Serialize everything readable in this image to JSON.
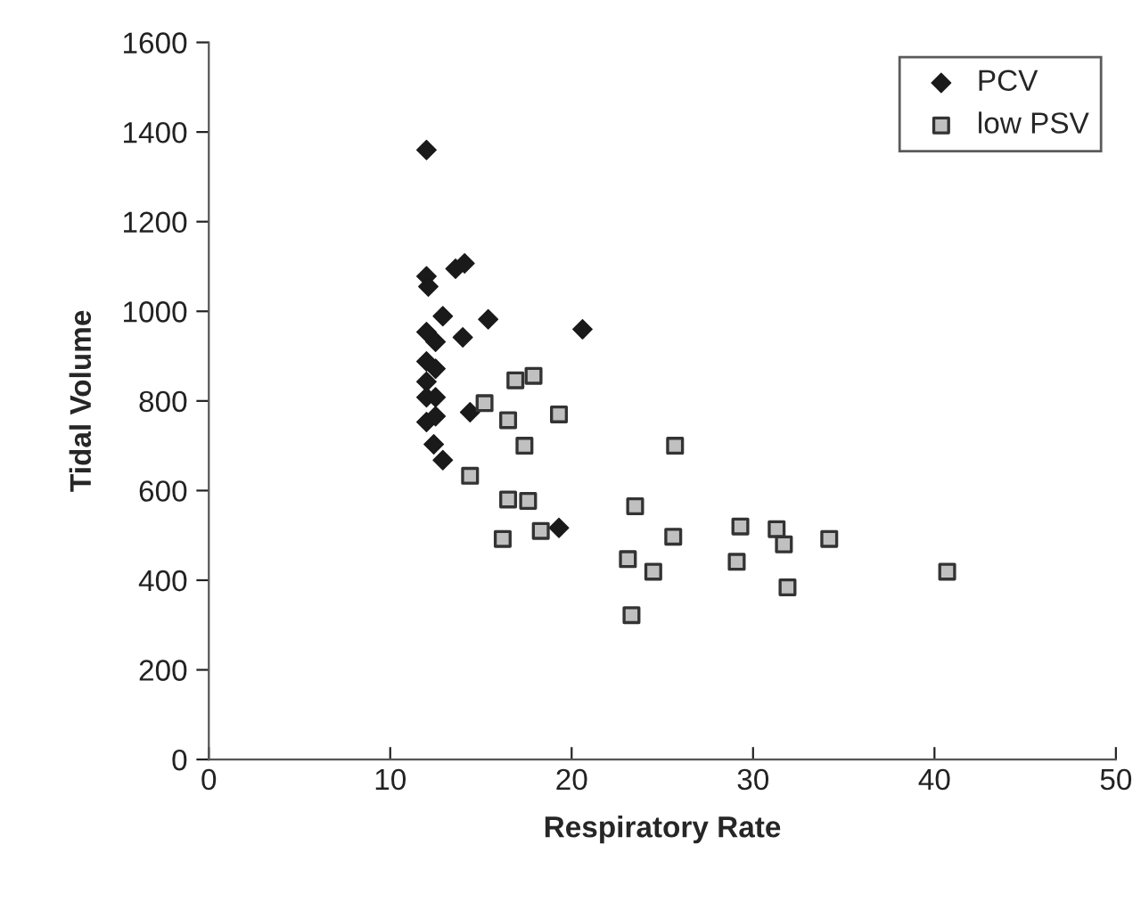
{
  "chart_data": {
    "type": "scatter",
    "xlabel": "Respiratory Rate",
    "ylabel": "Tidal Volume",
    "xlim": [
      0,
      50
    ],
    "xticks": [
      0,
      10,
      20,
      30,
      40,
      50
    ],
    "ylim": [
      0,
      1600
    ],
    "yticks": [
      0,
      200,
      400,
      600,
      800,
      1000,
      1200,
      1400,
      1600
    ],
    "grid": false,
    "legend": "top right",
    "series": [
      {
        "name": "PCV",
        "color": "#1a1a1a",
        "marker": "diamond",
        "x": [
          12.0,
          12.0,
          12.1,
          13.6,
          14.1,
          12.9,
          15.4,
          20.6,
          12.0,
          12.5,
          14.0,
          12.0,
          12.5,
          12.0,
          12.0,
          12.5,
          14.4,
          12.0,
          12.5,
          12.4,
          12.9,
          14.6,
          19.3
        ],
        "values": [
          1360,
          1078,
          1055,
          1095,
          1107,
          989,
          982,
          960,
          954,
          932,
          942,
          888,
          872,
          843,
          808,
          808,
          775,
          753,
          766,
          703,
          668,
          null,
          517
        ]
      },
      {
        "name": "low PSV",
        "color": "#c0c0c0",
        "marker": "square",
        "x": [
          16.9,
          17.9,
          15.2,
          16.5,
          19.3,
          17.4,
          14.4,
          16.5,
          17.6,
          23.5,
          16.2,
          18.3,
          25.7,
          25.6,
          29.3,
          31.3,
          31.7,
          34.2,
          23.1,
          24.5,
          29.1,
          31.9,
          40.7,
          23.3
        ],
        "values": [
          846,
          856,
          795,
          757,
          770,
          700,
          633,
          580,
          577,
          565,
          492,
          510,
          700,
          497,
          520,
          514,
          480,
          492,
          447,
          419,
          441,
          384,
          419,
          322
        ]
      }
    ]
  }
}
